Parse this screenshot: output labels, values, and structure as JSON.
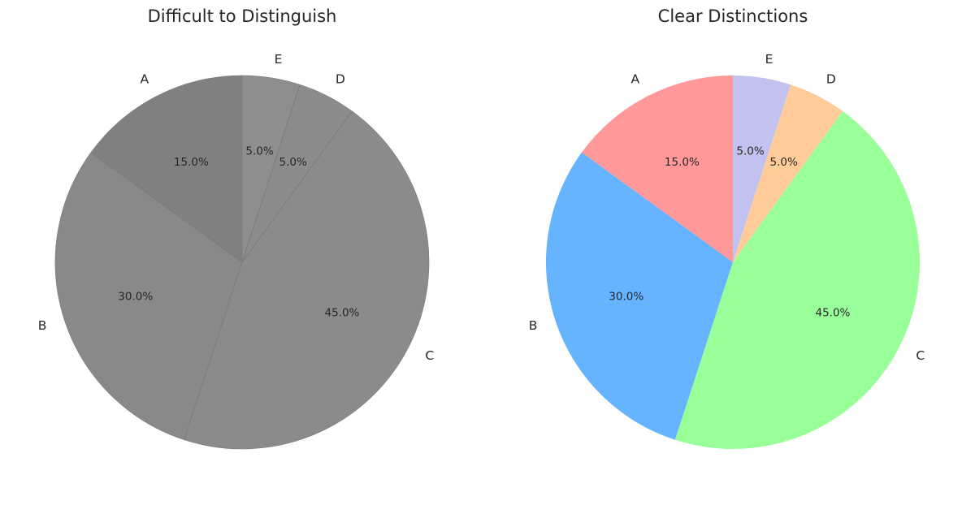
{
  "chart_data": [
    {
      "type": "pie",
      "title": "Difficult to Distinguish",
      "categories": [
        "A",
        "B",
        "C",
        "D",
        "E"
      ],
      "values": [
        15,
        30,
        45,
        5,
        5
      ],
      "value_labels": [
        "15.0%",
        "30.0%",
        "45.0%",
        "5.0%",
        "5.0%"
      ],
      "colors": [
        "#808080",
        "#898989",
        "#8b8b8b",
        "#8c8c8c",
        "#8e8e8e"
      ],
      "start_angle_deg": 90,
      "direction": "counterclockwise"
    },
    {
      "type": "pie",
      "title": "Clear Distinctions",
      "categories": [
        "A",
        "B",
        "C",
        "D",
        "E"
      ],
      "values": [
        15,
        30,
        45,
        5,
        5
      ],
      "value_labels": [
        "15.0%",
        "30.0%",
        "45.0%",
        "5.0%",
        "5.0%"
      ],
      "colors": [
        "#ff9999",
        "#66b3ff",
        "#99ff99",
        "#ffcc99",
        "#c2c2f0"
      ],
      "start_angle_deg": 90,
      "direction": "counterclockwise"
    }
  ]
}
